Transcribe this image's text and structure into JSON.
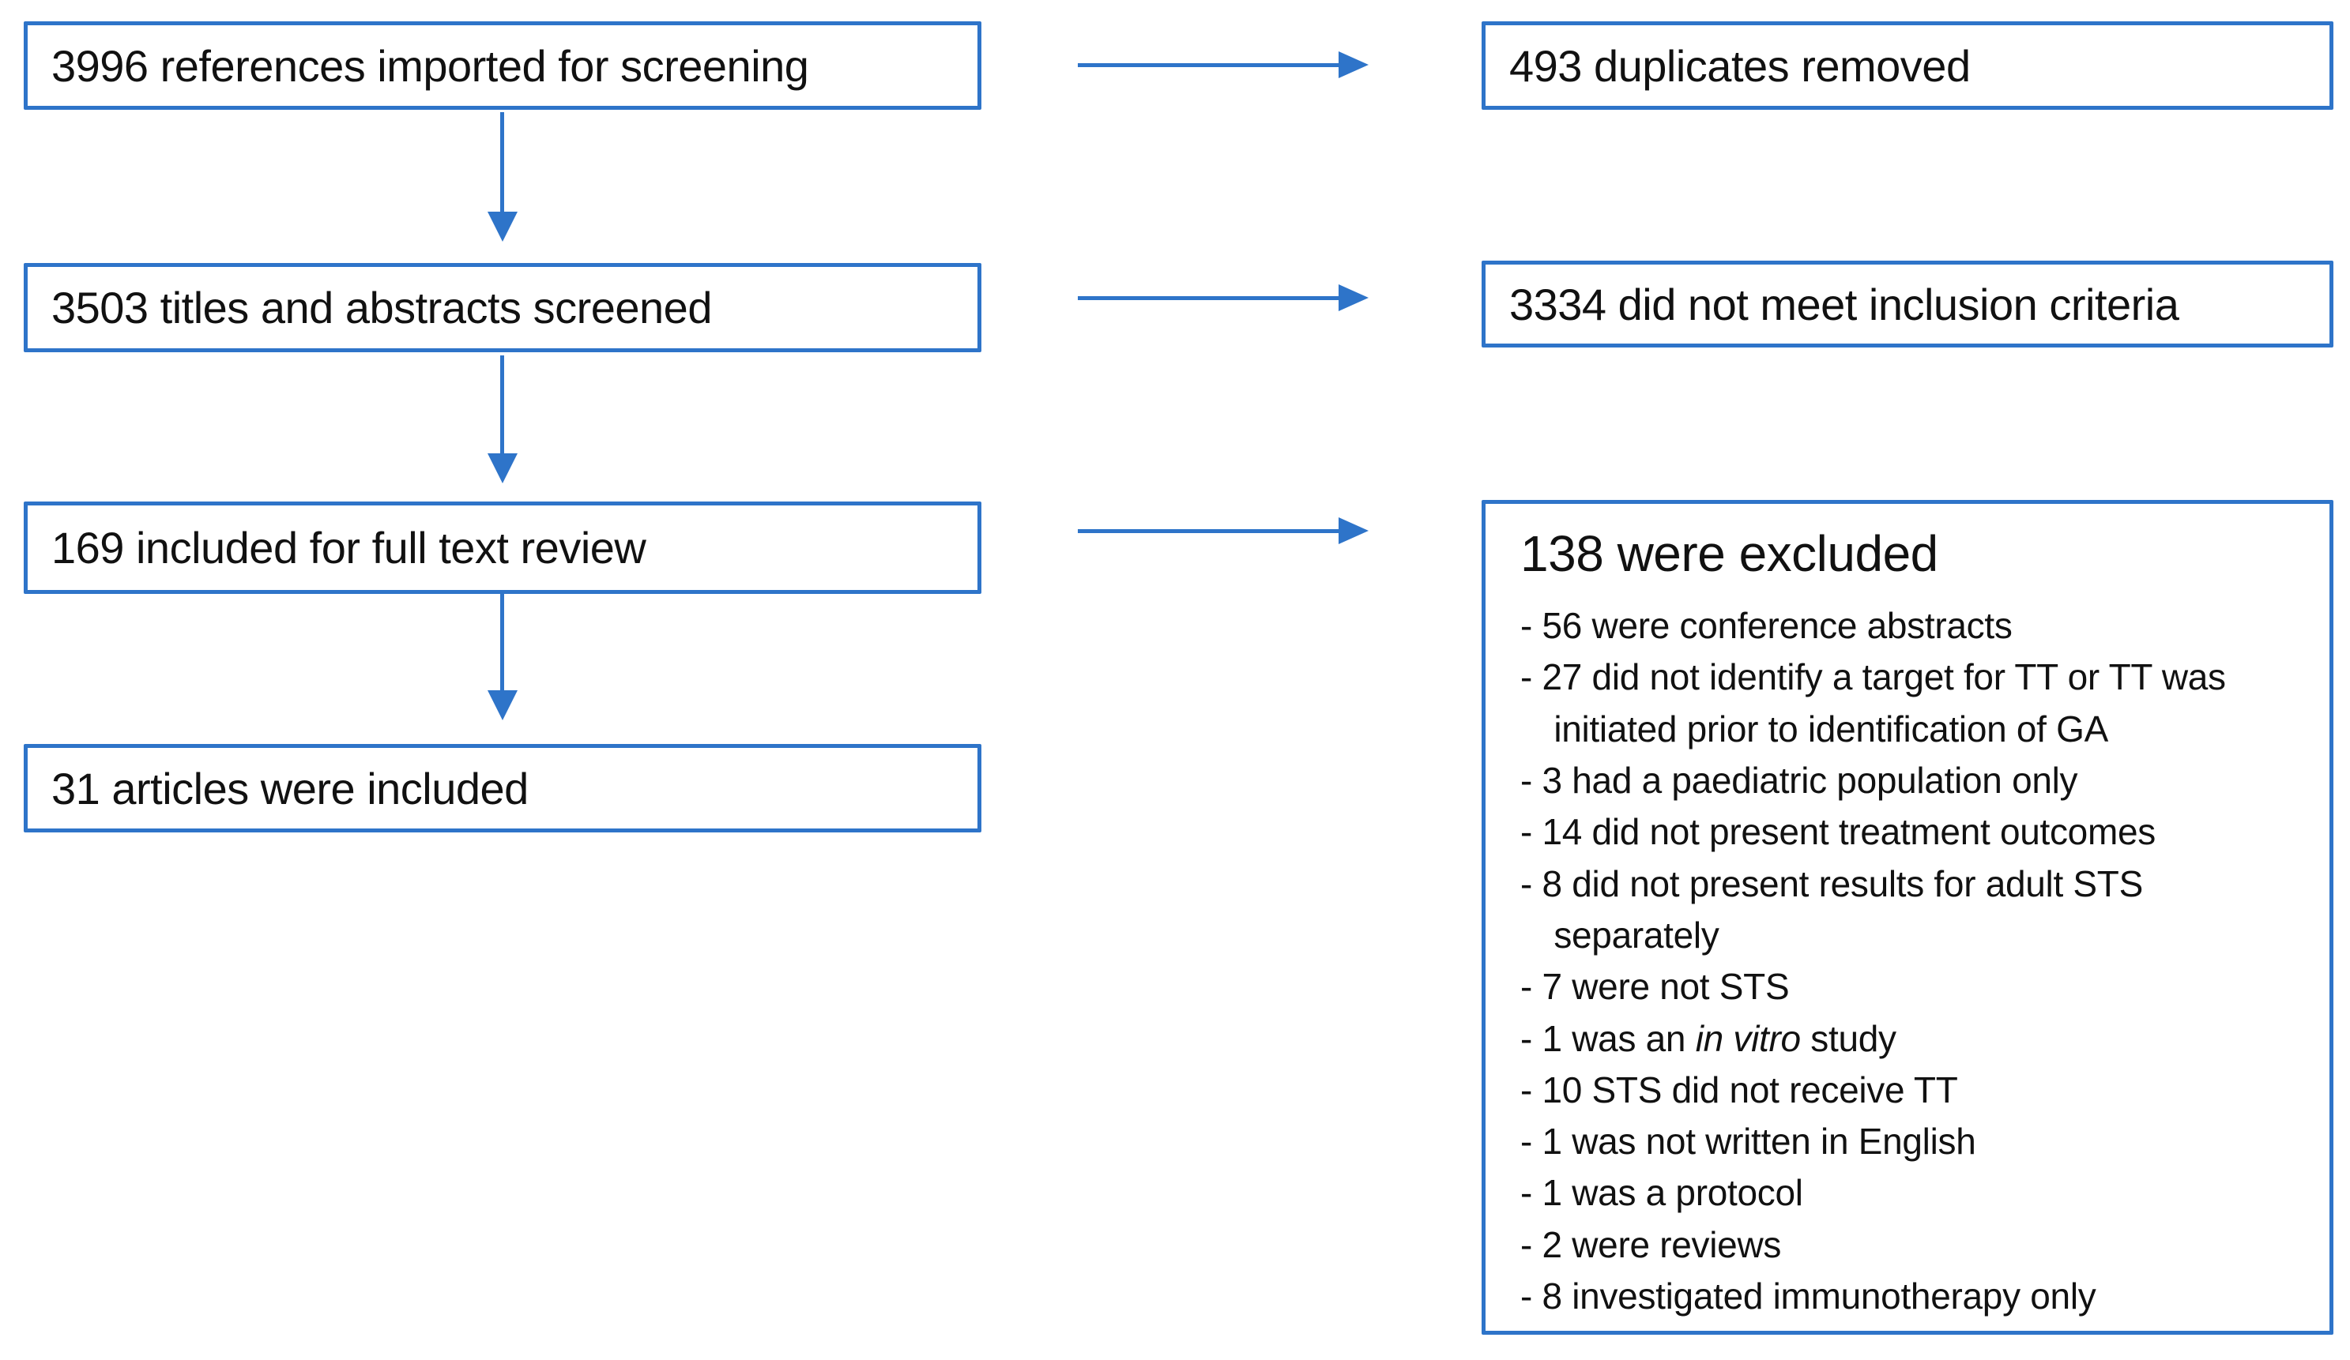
{
  "palette": {
    "accent_blue": "#2E74C9",
    "text": "#111111",
    "background": "#ffffff"
  },
  "flow": {
    "left_boxes": [
      {
        "label": "3996 references imported for screening"
      },
      {
        "label": "3503 titles and abstracts screened"
      },
      {
        "label": "169 included for full text review"
      },
      {
        "label": "31 articles were included"
      }
    ],
    "right_boxes": [
      {
        "label": "493 duplicates removed"
      },
      {
        "label": "3334 did not meet inclusion criteria"
      }
    ],
    "exclusion_box": {
      "title": "138 were excluded",
      "items": [
        [
          {
            "t": "- 56 were conference abstracts"
          }
        ],
        [
          {
            "t": "- 27 did not identify a target for TT or TT was initiated prior to identification of GA"
          }
        ],
        [
          {
            "t": "- 3 had a paediatric population only"
          }
        ],
        [
          {
            "t": "- 14 did not present treatment outcomes"
          }
        ],
        [
          {
            "t": "- 8 did not present results for adult STS separately"
          }
        ],
        [
          {
            "t": "- 7 were not STS"
          }
        ],
        [
          {
            "t": "- 1 was an "
          },
          {
            "t": "in vitro",
            "i": true
          },
          {
            "t": " study"
          }
        ],
        [
          {
            "t": "- 10 STS did not receive TT"
          }
        ],
        [
          {
            "t": "- 1 was not written in English"
          }
        ],
        [
          {
            "t": "- 1 was a protocol"
          }
        ],
        [
          {
            "t": "- 2 were reviews"
          }
        ],
        [
          {
            "t": "- 8 investigated immunotherapy only"
          }
        ]
      ]
    }
  }
}
